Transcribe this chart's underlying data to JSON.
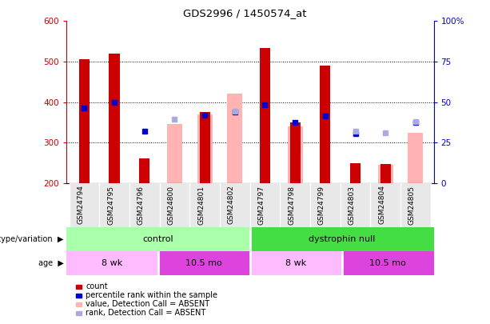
{
  "title": "GDS2996 / 1450574_at",
  "samples": [
    "GSM24794",
    "GSM24795",
    "GSM24796",
    "GSM24800",
    "GSM24801",
    "GSM24802",
    "GSM24797",
    "GSM24798",
    "GSM24799",
    "GSM24803",
    "GSM24804",
    "GSM24805"
  ],
  "count_tops": [
    505,
    520,
    260,
    200,
    375,
    200,
    533,
    350,
    490,
    250,
    248,
    200
  ],
  "pink_bar_values": [
    0,
    0,
    0,
    345,
    370,
    420,
    0,
    340,
    0,
    0,
    245,
    325
  ],
  "blue_dot_values": [
    385,
    400,
    328,
    0,
    368,
    375,
    393,
    350,
    365,
    323,
    0,
    350
  ],
  "light_blue_dot_values": [
    0,
    0,
    0,
    358,
    0,
    378,
    0,
    0,
    0,
    328,
    325,
    352
  ],
  "ylim_left": [
    200,
    600
  ],
  "ylim_right": [
    0,
    100
  ],
  "right_ticks": [
    0,
    25,
    50,
    75,
    100
  ],
  "right_tick_labels": [
    "0",
    "25",
    "50",
    "75",
    "100%"
  ],
  "left_ticks": [
    200,
    300,
    400,
    500,
    600
  ],
  "grid_lines": [
    300,
    400,
    500
  ],
  "bar_color_red": "#cc0000",
  "bar_color_pink": "#ffb3b3",
  "dot_color_blue": "#0000cc",
  "dot_color_light_blue": "#aaaadd",
  "color_control_light": "#bbffbb",
  "color_control_dark": "#44cc44",
  "color_dystrophin_light": "#88ee88",
  "color_dystrophin_dark": "#33bb33",
  "color_8wk_light": "#ffbbff",
  "color_8wk_dark": "#ffaaff",
  "color_105mo_light": "#ee66ee",
  "color_105mo_dark": "#dd44dd",
  "legend_items": [
    {
      "label": "count",
      "color": "#cc0000"
    },
    {
      "label": "percentile rank within the sample",
      "color": "#0000cc"
    },
    {
      "label": "value, Detection Call = ABSENT",
      "color": "#ffb3b3"
    },
    {
      "label": "rank, Detection Call = ABSENT",
      "color": "#aaaadd"
    }
  ]
}
